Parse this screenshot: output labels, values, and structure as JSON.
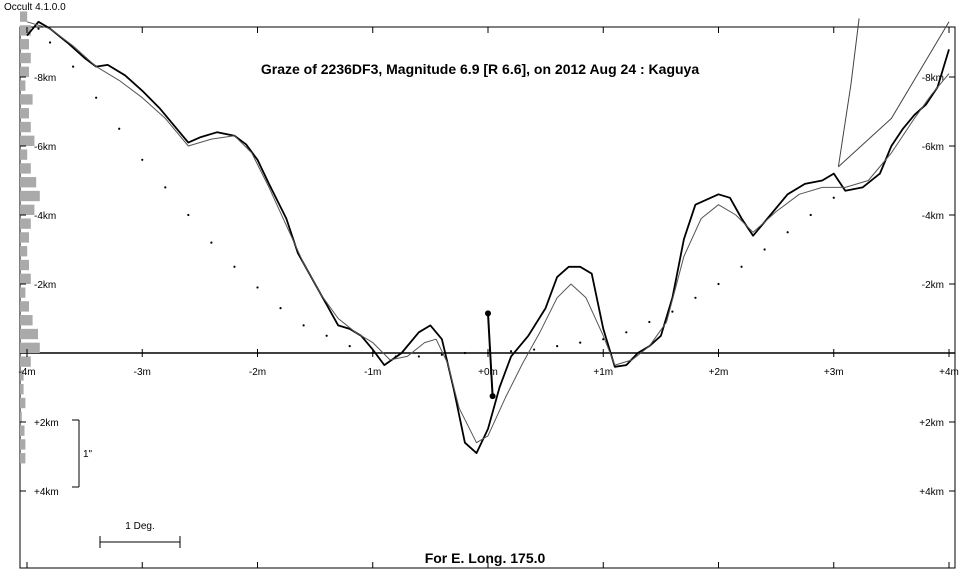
{
  "window": {
    "app_title": "Occult 4.1.0.0"
  },
  "chart_data": {
    "type": "line",
    "title": "Graze of  2236DF3,  Magnitude 6.9 [R 6.6],  on 2012 Aug 24  :  Kaguya",
    "footer": "For E. Long. 175.0",
    "x_unit": "minutes",
    "y_unit": "km",
    "xlim": [
      -4,
      4
    ],
    "ylim": [
      -10,
      4
    ],
    "x_ticks": [
      {
        "value": -4,
        "label": "-4m"
      },
      {
        "value": -3,
        "label": "-3m"
      },
      {
        "value": -2,
        "label": "-2m"
      },
      {
        "value": -1,
        "label": "-1m"
      },
      {
        "value": 0,
        "label": "+0m"
      },
      {
        "value": 1,
        "label": "+1m"
      },
      {
        "value": 2,
        "label": "+2m"
      },
      {
        "value": 3,
        "label": "+3m"
      },
      {
        "value": 4,
        "label": "+4m"
      }
    ],
    "y_ticks": [
      {
        "value": -8,
        "label": "-8km"
      },
      {
        "value": -6,
        "label": "-6km"
      },
      {
        "value": -4,
        "label": "-4km"
      },
      {
        "value": -2,
        "label": "-2km"
      },
      {
        "value": 2,
        "label": "+2km"
      },
      {
        "value": 4,
        "label": "+4km"
      }
    ],
    "scale_bar_arcsec_label": "1\"",
    "scale_bar_degree_label": "1 Deg.",
    "series": [
      {
        "role": "kaguya-detailed-profile",
        "stroke": "#000000",
        "points": [
          [
            -4.0,
            -9.2
          ],
          [
            -3.9,
            -9.6
          ],
          [
            -3.8,
            -9.4
          ],
          [
            -3.65,
            -9.0
          ],
          [
            -3.5,
            -8.55
          ],
          [
            -3.4,
            -8.3
          ],
          [
            -3.3,
            -8.35
          ],
          [
            -3.15,
            -8.05
          ],
          [
            -3.0,
            -7.6
          ],
          [
            -2.85,
            -7.1
          ],
          [
            -2.7,
            -6.5
          ],
          [
            -2.6,
            -6.1
          ],
          [
            -2.5,
            -6.25
          ],
          [
            -2.35,
            -6.4
          ],
          [
            -2.2,
            -6.3
          ],
          [
            -2.1,
            -6.05
          ],
          [
            -2.0,
            -5.6
          ],
          [
            -1.9,
            -4.9
          ],
          [
            -1.75,
            -3.9
          ],
          [
            -1.65,
            -2.9
          ],
          [
            -1.5,
            -2.0
          ],
          [
            -1.4,
            -1.4
          ],
          [
            -1.3,
            -0.8
          ],
          [
            -1.2,
            -0.7
          ],
          [
            -1.1,
            -0.5
          ],
          [
            -1.0,
            -0.1
          ],
          [
            -0.9,
            0.35
          ],
          [
            -0.75,
            0.0
          ],
          [
            -0.6,
            -0.6
          ],
          [
            -0.5,
            -0.8
          ],
          [
            -0.4,
            -0.4
          ],
          [
            -0.3,
            1.0
          ],
          [
            -0.2,
            2.6
          ],
          [
            -0.1,
            2.9
          ],
          [
            0.0,
            2.2
          ],
          [
            0.1,
            1.0
          ],
          [
            0.2,
            0.1
          ],
          [
            0.35,
            -0.5
          ],
          [
            0.5,
            -1.3
          ],
          [
            0.6,
            -2.2
          ],
          [
            0.7,
            -2.5
          ],
          [
            0.8,
            -2.5
          ],
          [
            0.9,
            -2.3
          ],
          [
            1.0,
            -0.7
          ],
          [
            1.1,
            0.4
          ],
          [
            1.2,
            0.35
          ],
          [
            1.3,
            0.0
          ],
          [
            1.4,
            -0.2
          ],
          [
            1.5,
            -0.5
          ],
          [
            1.6,
            -1.6
          ],
          [
            1.7,
            -3.3
          ],
          [
            1.8,
            -4.3
          ],
          [
            2.0,
            -4.6
          ],
          [
            2.1,
            -4.5
          ],
          [
            2.2,
            -3.9
          ],
          [
            2.3,
            -3.4
          ],
          [
            2.45,
            -4.0
          ],
          [
            2.6,
            -4.6
          ],
          [
            2.75,
            -4.9
          ],
          [
            2.9,
            -5.0
          ],
          [
            3.0,
            -5.2
          ],
          [
            3.1,
            -4.7
          ],
          [
            3.25,
            -4.8
          ],
          [
            3.4,
            -5.2
          ],
          [
            3.5,
            -6.0
          ],
          [
            3.6,
            -6.5
          ],
          [
            3.7,
            -6.9
          ],
          [
            3.8,
            -7.2
          ],
          [
            3.9,
            -7.7
          ],
          [
            4.0,
            -8.8
          ]
        ]
      },
      {
        "role": "smoothed-profile",
        "stroke": "#555555",
        "points": [
          [
            -4.0,
            -9.6
          ],
          [
            -3.8,
            -9.4
          ],
          [
            -3.6,
            -8.9
          ],
          [
            -3.4,
            -8.3
          ],
          [
            -3.2,
            -7.9
          ],
          [
            -3.0,
            -7.4
          ],
          [
            -2.8,
            -6.8
          ],
          [
            -2.6,
            -6.0
          ],
          [
            -2.4,
            -6.2
          ],
          [
            -2.2,
            -6.3
          ],
          [
            -2.05,
            -5.8
          ],
          [
            -1.9,
            -4.8
          ],
          [
            -1.75,
            -3.7
          ],
          [
            -1.6,
            -2.6
          ],
          [
            -1.45,
            -1.7
          ],
          [
            -1.3,
            -1.0
          ],
          [
            -1.15,
            -0.6
          ],
          [
            -1.0,
            -0.3
          ],
          [
            -0.85,
            0.2
          ],
          [
            -0.7,
            0.1
          ],
          [
            -0.55,
            -0.3
          ],
          [
            -0.45,
            -0.4
          ],
          [
            -0.35,
            0.3
          ],
          [
            -0.25,
            1.6
          ],
          [
            -0.1,
            2.6
          ],
          [
            0.0,
            2.4
          ],
          [
            0.15,
            1.3
          ],
          [
            0.3,
            0.3
          ],
          [
            0.45,
            -0.6
          ],
          [
            0.6,
            -1.6
          ],
          [
            0.72,
            -2.0
          ],
          [
            0.85,
            -1.6
          ],
          [
            1.0,
            -0.5
          ],
          [
            1.1,
            0.35
          ],
          [
            1.25,
            0.2
          ],
          [
            1.4,
            -0.2
          ],
          [
            1.55,
            -0.9
          ],
          [
            1.7,
            -2.8
          ],
          [
            1.85,
            -3.9
          ],
          [
            2.0,
            -4.3
          ],
          [
            2.15,
            -4.0
          ],
          [
            2.3,
            -3.5
          ],
          [
            2.5,
            -4.1
          ],
          [
            2.7,
            -4.6
          ],
          [
            2.9,
            -4.8
          ],
          [
            3.1,
            -4.8
          ],
          [
            3.3,
            -5.0
          ],
          [
            3.5,
            -5.8
          ],
          [
            3.7,
            -6.8
          ],
          [
            3.85,
            -7.5
          ],
          [
            4.0,
            -8.1
          ]
        ]
      }
    ],
    "limit_lines": {
      "stroke": "#444444",
      "a": [
        [
          3.04,
          -5.4
        ],
        [
          3.15,
          -7.8
        ],
        [
          3.22,
          -9.7
        ]
      ],
      "b": [
        [
          3.04,
          -5.4
        ],
        [
          3.5,
          -6.8
        ],
        [
          4.0,
          -9.6
        ]
      ]
    },
    "dotted_limit": {
      "points": [
        [
          -3.9,
          -9.4
        ],
        [
          -3.8,
          -9.0
        ],
        [
          -3.6,
          -8.3
        ],
        [
          -3.4,
          -7.4
        ],
        [
          -3.2,
          -6.5
        ],
        [
          -3.0,
          -5.6
        ],
        [
          -2.8,
          -4.8
        ],
        [
          -2.6,
          -4.0
        ],
        [
          -2.4,
          -3.2
        ],
        [
          -2.2,
          -2.5
        ],
        [
          -2.0,
          -1.9
        ],
        [
          -1.8,
          -1.3
        ],
        [
          -1.6,
          -0.8
        ],
        [
          -1.4,
          -0.5
        ],
        [
          -1.2,
          -0.2
        ],
        [
          -1.0,
          0.0
        ],
        [
          -0.8,
          0.1
        ],
        [
          -0.6,
          0.1
        ],
        [
          -0.4,
          0.05
        ],
        [
          -0.2,
          0.0
        ],
        [
          0.0,
          0.0
        ],
        [
          0.2,
          -0.05
        ],
        [
          0.4,
          -0.1
        ],
        [
          0.6,
          -0.2
        ],
        [
          0.8,
          -0.3
        ],
        [
          1.0,
          -0.4
        ],
        [
          1.2,
          -0.6
        ],
        [
          1.4,
          -0.9
        ],
        [
          1.6,
          -1.2
        ],
        [
          1.8,
          -1.6
        ],
        [
          2.0,
          -2.0
        ],
        [
          2.2,
          -2.5
        ],
        [
          2.4,
          -3.0
        ],
        [
          2.6,
          -3.5
        ],
        [
          2.8,
          -4.0
        ],
        [
          3.0,
          -4.5
        ]
      ]
    },
    "motion_marker": {
      "start": [
        0.0,
        -1.15
      ],
      "end": [
        0.04,
        1.25
      ]
    },
    "side_histogram": {
      "fill": "#aaaaaa",
      "bins": [
        [
          -9.9,
          0.4
        ],
        [
          -9.5,
          0.6
        ],
        [
          -9.1,
          0.5
        ],
        [
          -8.7,
          0.6
        ],
        [
          -8.3,
          0.5
        ],
        [
          -7.9,
          0.3
        ],
        [
          -7.5,
          0.7
        ],
        [
          -7.1,
          0.5
        ],
        [
          -6.7,
          0.6
        ],
        [
          -6.3,
          0.8
        ],
        [
          -5.9,
          0.4
        ],
        [
          -5.5,
          0.6
        ],
        [
          -5.1,
          0.9
        ],
        [
          -4.7,
          1.1
        ],
        [
          -4.3,
          0.8
        ],
        [
          -3.9,
          0.6
        ],
        [
          -3.5,
          0.5
        ],
        [
          -3.1,
          0.4
        ],
        [
          -2.7,
          0.5
        ],
        [
          -2.3,
          0.6
        ],
        [
          -1.9,
          0.3
        ],
        [
          -1.5,
          0.5
        ],
        [
          -1.1,
          0.7
        ],
        [
          -0.7,
          1.0
        ],
        [
          -0.3,
          1.1
        ],
        [
          0.1,
          0.6
        ],
        [
          0.5,
          0.2
        ],
        [
          0.9,
          0.2
        ],
        [
          1.3,
          0.3
        ],
        [
          1.7,
          0.1
        ],
        [
          2.1,
          0.25
        ],
        [
          2.5,
          0.3
        ],
        [
          2.9,
          0.3
        ]
      ]
    }
  }
}
